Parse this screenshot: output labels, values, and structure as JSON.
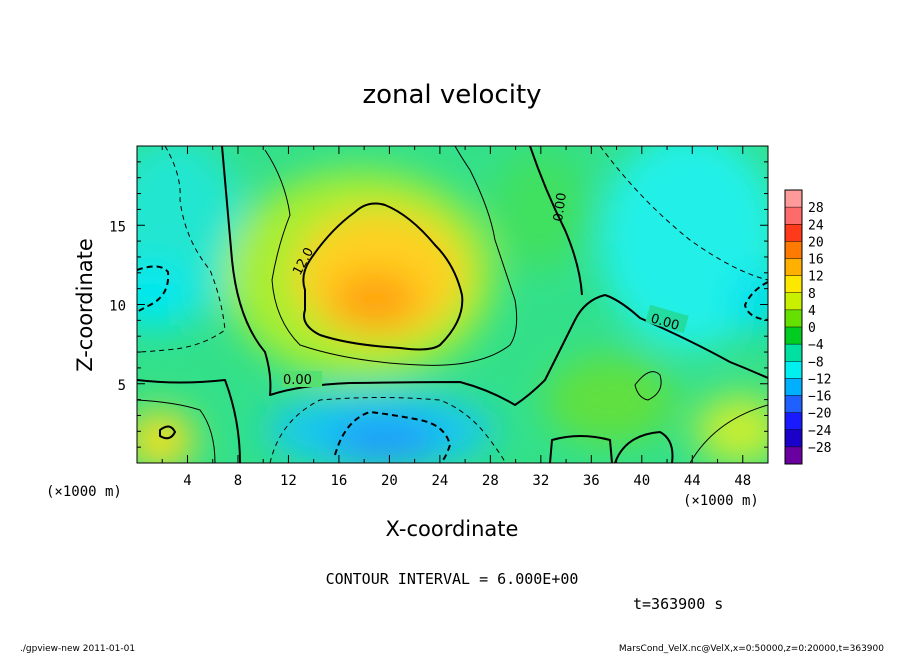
{
  "chart_data": {
    "type": "heatmap",
    "title": "zonal velocity",
    "xlabel": "X-coordinate",
    "ylabel": "Z-coordinate",
    "x_unit": "(×1000 m)",
    "y_unit": "(×1000 m)",
    "xlim": [
      0,
      50
    ],
    "ylim": [
      0,
      20
    ],
    "x_ticks": [
      4,
      8,
      12,
      16,
      20,
      24,
      28,
      32,
      36,
      40,
      44,
      48
    ],
    "y_ticks": [
      5,
      10,
      15
    ],
    "colorbar": {
      "levels": [
        28,
        24,
        20,
        16,
        12,
        8,
        4,
        0,
        -4,
        -8,
        -12,
        -16,
        -20,
        -24,
        -28
      ],
      "colors": [
        "#ff9a9a",
        "#ff6a6a",
        "#ff3a1a",
        "#ff7a00",
        "#ffb000",
        "#ffe800",
        "#c8f000",
        "#66e000",
        "#00cc22",
        "#00e0a0",
        "#00f0f0",
        "#00b0ff",
        "#2060ff",
        "#1a1aff",
        "#1a00c8",
        "#6a00a0"
      ]
    },
    "contour_labels": [
      "12.0",
      "0.00",
      "0.00",
      "0.00"
    ],
    "contour_interval": "CONTOUR INTERVAL = 6.000E+00",
    "time": "t=363900 s"
  },
  "footer": {
    "left": "./gpview-new  2011-01-01",
    "right": "MarsCond_VelX.nc@VelX,x=0:50000,z=0:20000,t=363900"
  }
}
